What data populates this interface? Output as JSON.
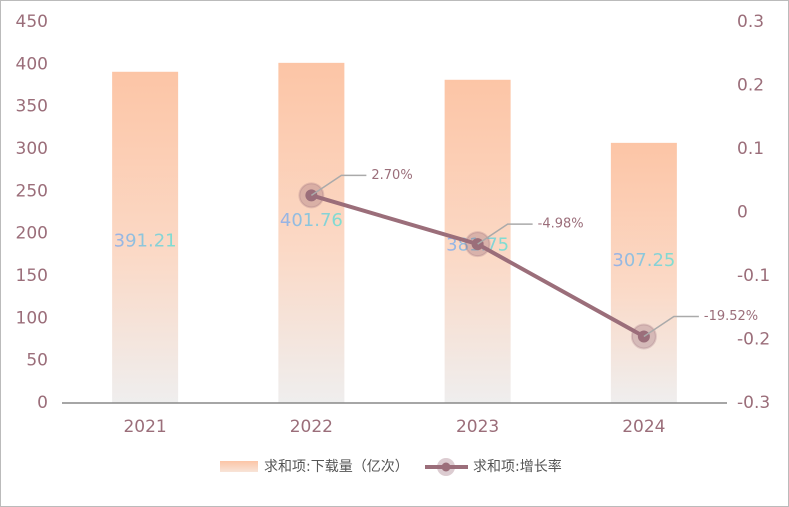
{
  "chart_data": {
    "type": "bar-line",
    "categories": [
      "2021",
      "2022",
      "2023",
      "2024"
    ],
    "series": [
      {
        "name": "求和项:下载量（亿次）",
        "type": "bar",
        "color": "#fcc5a6",
        "values": [
          391.21,
          401.76,
          381.75,
          307.25
        ]
      },
      {
        "name": "求和项:增长率",
        "type": "line",
        "axis": "y2",
        "color": "#9b6e7a",
        "values": [
          null,
          0.027,
          -0.0498,
          -0.1952
        ],
        "value_labels": [
          null,
          "2.70%",
          "-4.98%",
          "-19.52%"
        ]
      }
    ],
    "ylim": [
      0,
      450
    ],
    "yticks": [
      0,
      50,
      100,
      150,
      200,
      250,
      300,
      350,
      400,
      450
    ],
    "y2lim": [
      -0.3,
      0.3
    ],
    "y2ticks": [
      -0.3,
      -0.2,
      -0.1,
      0,
      0.1,
      0.2,
      0.3
    ],
    "legend": "bottom"
  }
}
